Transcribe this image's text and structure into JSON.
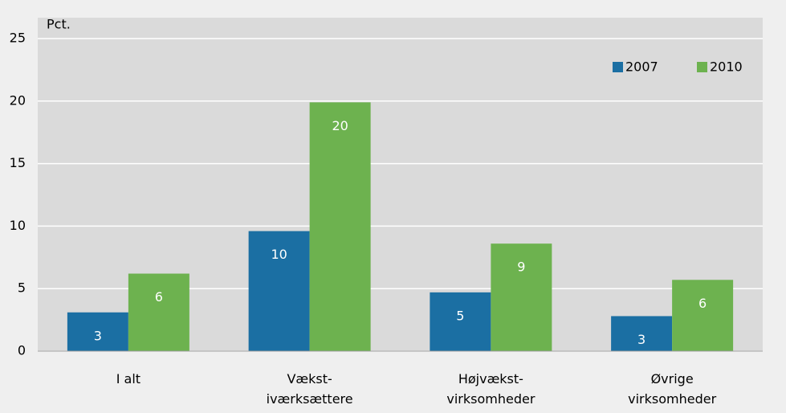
{
  "chart_data": {
    "type": "bar",
    "y_label": "Pct.",
    "categories": [
      [
        "I alt"
      ],
      [
        "Vækst-",
        "iværksættere"
      ],
      [
        "Højvækst-",
        "virksomheder"
      ],
      [
        "Øvrige",
        "virksomheder"
      ]
    ],
    "series": [
      {
        "name": "2007",
        "color": "#1b6fa3",
        "values": [
          3.1,
          9.6,
          4.7,
          2.8
        ],
        "value_labels": [
          "3",
          "10",
          "5",
          "3"
        ]
      },
      {
        "name": "2010",
        "color": "#6db24f",
        "values": [
          6.2,
          19.9,
          8.6,
          5.7
        ],
        "value_labels": [
          "6",
          "20",
          "9",
          "6"
        ]
      }
    ],
    "ylim": [
      0,
      25
    ],
    "yticks": [
      0,
      5,
      10,
      15,
      20,
      25
    ],
    "grid": true,
    "legend": "upper right"
  }
}
